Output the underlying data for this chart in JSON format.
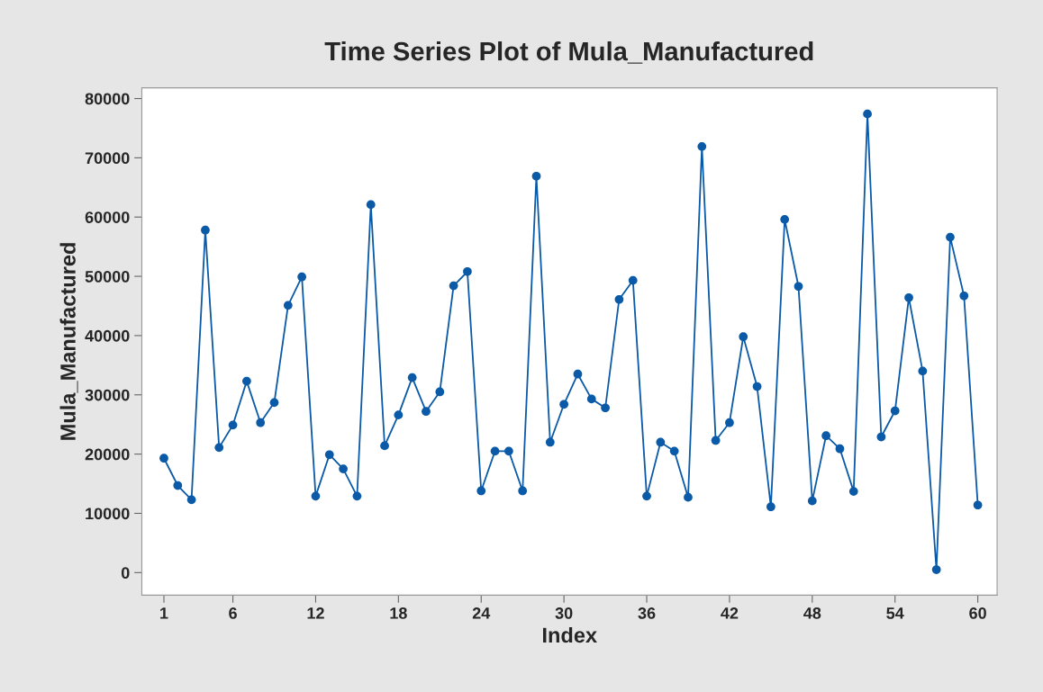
{
  "chart_data": {
    "type": "line",
    "title": "Time Series Plot of Mula_Manufactured",
    "xlabel": "Index",
    "ylabel": "Mula_Manufactured",
    "x": [
      1,
      2,
      3,
      4,
      5,
      6,
      7,
      8,
      9,
      10,
      11,
      12,
      13,
      14,
      15,
      16,
      17,
      18,
      19,
      20,
      21,
      22,
      23,
      24,
      25,
      26,
      27,
      28,
      29,
      30,
      31,
      32,
      33,
      34,
      35,
      36,
      37,
      38,
      39,
      40,
      41,
      42,
      43,
      44,
      45,
      46,
      47,
      48,
      49,
      50,
      51,
      52,
      53,
      54,
      55,
      56,
      57,
      58,
      59,
      60
    ],
    "series": [
      {
        "color": "#0a5aa8",
        "values": [
          19300,
          14700,
          12300,
          57800,
          21100,
          24900,
          32300,
          25300,
          28700,
          45100,
          49900,
          12900,
          19900,
          17500,
          12900,
          62100,
          21400,
          26600,
          32900,
          27200,
          30500,
          48400,
          50800,
          13800,
          20500,
          20500,
          13800,
          66900,
          22000,
          28400,
          33500,
          29300,
          27800,
          46100,
          49300,
          12900,
          22000,
          20500,
          12700,
          71900,
          22300,
          25300,
          39800,
          31400,
          11100,
          59600,
          48300,
          12100,
          23100,
          20900,
          13700,
          77400,
          22900,
          27300,
          46400,
          34000,
          500,
          56600,
          46700,
          11400
        ]
      }
    ],
    "xlim": [
      -0.6,
      61.4
    ],
    "ylim": [
      -3800,
      81800
    ],
    "xticks": [
      1,
      6,
      12,
      18,
      24,
      30,
      36,
      42,
      48,
      54,
      60
    ],
    "yticks": [
      0,
      10000,
      20000,
      30000,
      40000,
      50000,
      60000,
      70000,
      80000
    ],
    "marker": "circle",
    "line_style": "solid",
    "grid": false,
    "legend": false
  }
}
